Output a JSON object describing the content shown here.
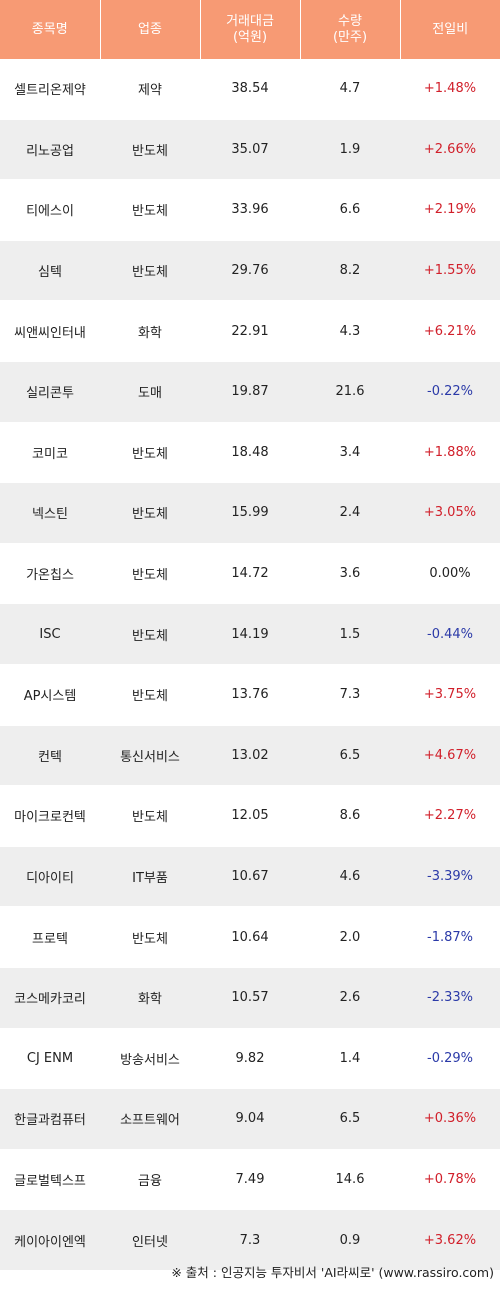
{
  "header": {
    "col1": "종목명",
    "col2": "업종",
    "col3_line1": "거래대금",
    "col3_line2": "(억원)",
    "col4_line1": "수량",
    "col4_line2": "(만주)",
    "col5": "전일비"
  },
  "rows": [
    {
      "name": "셀트리온제약",
      "sector": "제약",
      "amount": "38.54",
      "qty": "4.7",
      "change": "+1.48%",
      "dir": "up"
    },
    {
      "name": "리노공업",
      "sector": "반도체",
      "amount": "35.07",
      "qty": "1.9",
      "change": "+2.66%",
      "dir": "up"
    },
    {
      "name": "티에스이",
      "sector": "반도체",
      "amount": "33.96",
      "qty": "6.6",
      "change": "+2.19%",
      "dir": "up"
    },
    {
      "name": "심텍",
      "sector": "반도체",
      "amount": "29.76",
      "qty": "8.2",
      "change": "+1.55%",
      "dir": "up"
    },
    {
      "name": "씨앤씨인터내",
      "sector": "화학",
      "amount": "22.91",
      "qty": "4.3",
      "change": "+6.21%",
      "dir": "up"
    },
    {
      "name": "실리콘투",
      "sector": "도매",
      "amount": "19.87",
      "qty": "21.6",
      "change": "-0.22%",
      "dir": "down"
    },
    {
      "name": "코미코",
      "sector": "반도체",
      "amount": "18.48",
      "qty": "3.4",
      "change": "+1.88%",
      "dir": "up"
    },
    {
      "name": "넥스틴",
      "sector": "반도체",
      "amount": "15.99",
      "qty": "2.4",
      "change": "+3.05%",
      "dir": "up"
    },
    {
      "name": "가온칩스",
      "sector": "반도체",
      "amount": "14.72",
      "qty": "3.6",
      "change": "0.00%",
      "dir": "flat"
    },
    {
      "name": "ISC",
      "sector": "반도체",
      "amount": "14.19",
      "qty": "1.5",
      "change": "-0.44%",
      "dir": "down"
    },
    {
      "name": "AP시스템",
      "sector": "반도체",
      "amount": "13.76",
      "qty": "7.3",
      "change": "+3.75%",
      "dir": "up"
    },
    {
      "name": "컨텍",
      "sector": "통신서비스",
      "amount": "13.02",
      "qty": "6.5",
      "change": "+4.67%",
      "dir": "up"
    },
    {
      "name": "마이크로컨텍",
      "sector": "반도체",
      "amount": "12.05",
      "qty": "8.6",
      "change": "+2.27%",
      "dir": "up"
    },
    {
      "name": "디아이티",
      "sector": "IT부품",
      "amount": "10.67",
      "qty": "4.6",
      "change": "-3.39%",
      "dir": "down"
    },
    {
      "name": "프로텍",
      "sector": "반도체",
      "amount": "10.64",
      "qty": "2.0",
      "change": "-1.87%",
      "dir": "down"
    },
    {
      "name": "코스메카코리",
      "sector": "화학",
      "amount": "10.57",
      "qty": "2.6",
      "change": "-2.33%",
      "dir": "down"
    },
    {
      "name": "CJ ENM",
      "sector": "방송서비스",
      "amount": "9.82",
      "qty": "1.4",
      "change": "-0.29%",
      "dir": "down"
    },
    {
      "name": "한글과컴퓨터",
      "sector": "소프트웨어",
      "amount": "9.04",
      "qty": "6.5",
      "change": "+0.36%",
      "dir": "up"
    },
    {
      "name": "글로벌텍스프",
      "sector": "금융",
      "amount": "7.49",
      "qty": "14.6",
      "change": "+0.78%",
      "dir": "up"
    },
    {
      "name": "케이아이엔엑",
      "sector": "인터넷",
      "amount": "7.3",
      "qty": "0.9",
      "change": "+3.62%",
      "dir": "up"
    }
  ],
  "colors": {
    "header_bg": "#f79a74",
    "row_alt_bg": "#eeeeee",
    "up": "#d11f2a",
    "down": "#2b3aa8"
  },
  "footer": "※ 출처 : 인공지능 투자비서 'AI라씨로' (www.rassiro.com)"
}
